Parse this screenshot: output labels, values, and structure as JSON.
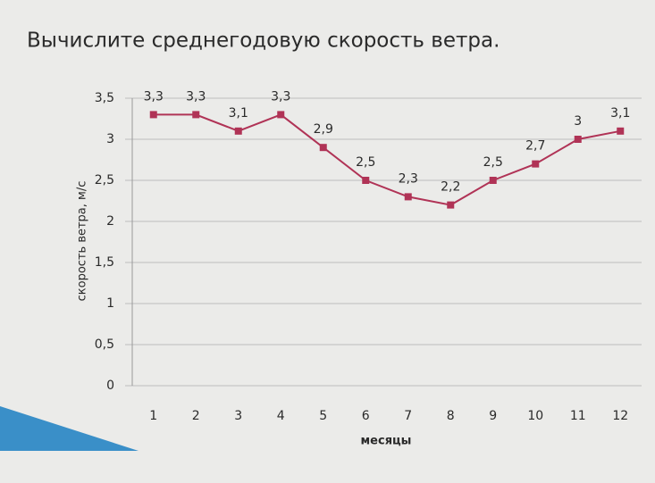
{
  "chart_data": {
    "type": "line",
    "title": "Вычислите среднегодовую скорость ветра.",
    "x_label": "месяцы",
    "y_label": "скорость ветра, м/с",
    "categories": [
      "1",
      "2",
      "3",
      "4",
      "5",
      "6",
      "7",
      "8",
      "9",
      "10",
      "11",
      "12"
    ],
    "series": [
      {
        "color": "#b03356",
        "values": [
          3.3,
          3.3,
          3.1,
          3.3,
          2.9,
          2.5,
          2.3,
          2.2,
          2.5,
          2.7,
          3,
          3.1
        ],
        "value_labels": [
          "3,3",
          "3,3",
          "3,1",
          "3,3",
          "2,9",
          "2,5",
          "2,3",
          "2,2",
          "2,5",
          "2,7",
          "3",
          "3,1"
        ]
      }
    ],
    "ylim": [
      0,
      3.5
    ],
    "yticks": [
      0,
      {
        "value": 0.5,
        "label": "0,5"
      },
      1,
      {
        "value": 1.5,
        "label": "1,5"
      },
      2,
      {
        "value": 2.5,
        "label": "2,5"
      },
      3,
      {
        "value": 3.5,
        "label": "3,5"
      }
    ],
    "grid": true
  }
}
